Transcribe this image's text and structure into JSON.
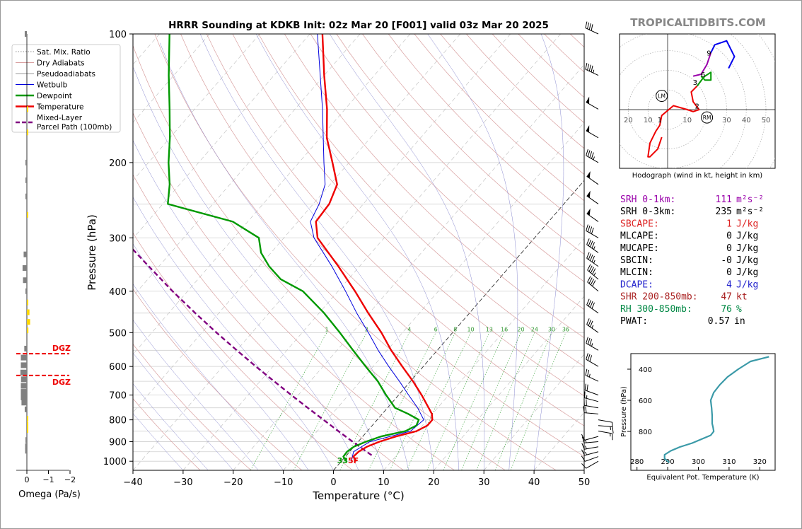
{
  "title": "HRRR Sounding at KDKB Init: 02z Mar 20 [F001] valid 03z Mar 20 2025",
  "brand": "TROPICALTIDBITS.COM",
  "colors": {
    "temperature": "#ee0000",
    "dewpoint": "#009900",
    "wetbulb": "#0000dd",
    "parcel": "#800080",
    "dry_adiabat": "#d9a0a0",
    "moist_adiabat": "#9a9a9a",
    "mixing_ratio": "#2e9e2e",
    "isotherm": "#2222cc",
    "theta_e": "#3b9aa8",
    "dgz": "#ee0000"
  },
  "legend": [
    {
      "key": "mixing_ratio",
      "label": "Sat. Mix. Ratio"
    },
    {
      "key": "dry_adiabat",
      "label": "Dry Adiabats"
    },
    {
      "key": "pseudo",
      "label": "Pseudoadiabats"
    },
    {
      "key": "wetbulb",
      "label": "Wetbulb"
    },
    {
      "key": "dewpoint",
      "label": "Dewpoint"
    },
    {
      "key": "temperature",
      "label": "Temperature"
    },
    {
      "key": "parcel",
      "label": "Mixed-Layer\nParcel Path (100mb)"
    }
  ],
  "omega": {
    "xlabel": "Omega (Pa/s)",
    "ticks": [
      "0",
      "−1",
      "−2"
    ],
    "dgz_label": "DGZ",
    "dgz_top_hpa": 560,
    "dgz_bottom_hpa": 630,
    "bars": [
      {
        "p": 100,
        "v": 0.1
      },
      {
        "p": 150,
        "v": -0.05
      },
      {
        "p": 170,
        "v": -0.03
      },
      {
        "p": 200,
        "v": 0.05
      },
      {
        "p": 220,
        "v": 0.05
      },
      {
        "p": 240,
        "v": 0.05
      },
      {
        "p": 265,
        "v": -0.03
      },
      {
        "p": 328,
        "v": 0.15
      },
      {
        "p": 353,
        "v": 0.2
      },
      {
        "p": 377,
        "v": 0.18
      },
      {
        "p": 400,
        "v": 0.05
      },
      {
        "p": 425,
        "v": -0.05
      },
      {
        "p": 448,
        "v": -0.12
      },
      {
        "p": 472,
        "v": -0.15
      },
      {
        "p": 494,
        "v": -0.07
      },
      {
        "p": 545,
        "v": 0.12
      },
      {
        "p": 572,
        "v": 0.28
      },
      {
        "p": 596,
        "v": 0.28
      },
      {
        "p": 620,
        "v": 0.3
      },
      {
        "p": 643,
        "v": 0.27
      },
      {
        "p": 666,
        "v": 0.28
      },
      {
        "p": 688,
        "v": 0.28
      },
      {
        "p": 709,
        "v": 0.28
      },
      {
        "p": 729,
        "v": 0.25
      },
      {
        "p": 756,
        "v": 0.1
      },
      {
        "p": 795,
        "v": -0.02
      },
      {
        "p": 822,
        "v": -0.05
      },
      {
        "p": 845,
        "v": -0.05
      },
      {
        "p": 892,
        "v": 0.05
      },
      {
        "p": 922,
        "v": 0.08
      },
      {
        "p": 945,
        "v": 0.08
      }
    ]
  },
  "chart_data": [
    {
      "type": "line",
      "title": "HRRR Sounding at KDKB Init: 02z Mar 20 [F001] valid 03z Mar 20 2025",
      "xlabel": "Temperature (°C)",
      "ylabel": "Pressure (hPa)",
      "xlim": [
        -40,
        50
      ],
      "ylim": [
        1050,
        100
      ],
      "yscale": "log",
      "skew": true,
      "x_ticks": [
        "−40",
        "−30",
        "−20",
        "−10",
        "0",
        "10",
        "20",
        "30",
        "40",
        "50"
      ],
      "y_ticks": [
        100,
        200,
        300,
        400,
        500,
        600,
        700,
        800,
        900,
        1000
      ],
      "mixing_ratio_labels": [
        "1",
        "2",
        "4",
        "6",
        "8",
        "10",
        "13",
        "16",
        "20",
        "24",
        "30",
        "36"
      ],
      "surface_temp_label": "33",
      "surface_temp_unit": "5F",
      "series": [
        {
          "name": "Temperature",
          "points": [
            [
              1000,
              3.0
            ],
            [
              975,
              1.6
            ],
            [
              950,
              1.8
            ],
            [
              925,
              2.6
            ],
            [
              900,
              4.2
            ],
            [
              875,
              6.6
            ],
            [
              850,
              9.8
            ],
            [
              825,
              11.0
            ],
            [
              800,
              11.0
            ],
            [
              775,
              9.9
            ],
            [
              750,
              8.2
            ],
            [
              700,
              4.6
            ],
            [
              650,
              0.5
            ],
            [
              600,
              -4.2
            ],
            [
              550,
              -9.2
            ],
            [
              500,
              -14.2
            ],
            [
              450,
              -20.2
            ],
            [
              400,
              -26.6
            ],
            [
              350,
              -34.2
            ],
            [
              300,
              -43.3
            ],
            [
              275,
              -46.4
            ],
            [
              250,
              -46.8
            ],
            [
              225,
              -48.6
            ],
            [
              200,
              -53.3
            ],
            [
              175,
              -58.7
            ],
            [
              150,
              -63.6
            ],
            [
              125,
              -70.0
            ],
            [
              100,
              -77.5
            ]
          ]
        },
        {
          "name": "Dewpoint",
          "points": [
            [
              1000,
              1.0
            ],
            [
              975,
              -0.4
            ],
            [
              950,
              -0.5
            ],
            [
              925,
              0.0
            ],
            [
              900,
              1.5
            ],
            [
              875,
              3.6
            ],
            [
              850,
              7.6
            ],
            [
              825,
              8.8
            ],
            [
              800,
              8.3
            ],
            [
              775,
              5.2
            ],
            [
              750,
              1.5
            ],
            [
              700,
              -2.5
            ],
            [
              650,
              -6.5
            ],
            [
              600,
              -11.5
            ],
            [
              550,
              -16.8
            ],
            [
              500,
              -22.5
            ],
            [
              450,
              -29.0
            ],
            [
              400,
              -37.0
            ],
            [
              375,
              -43.5
            ],
            [
              350,
              -48.0
            ],
            [
              325,
              -52.0
            ],
            [
              300,
              -55.0
            ],
            [
              275,
              -63.0
            ],
            [
              250,
              -79.0
            ],
            [
              225,
              -82.0
            ],
            [
              200,
              -86.0
            ],
            [
              175,
              -90.0
            ],
            [
              150,
              -95.0
            ],
            [
              125,
              -101.0
            ],
            [
              100,
              -108.0
            ]
          ]
        },
        {
          "name": "Wetbulb",
          "points": [
            [
              1000,
              2.0
            ],
            [
              950,
              0.8
            ],
            [
              900,
              2.3
            ],
            [
              850,
              8.6
            ],
            [
              800,
              9.3
            ],
            [
              750,
              6.0
            ],
            [
              700,
              2.0
            ],
            [
              650,
              -2.2
            ],
            [
              600,
              -6.9
            ],
            [
              550,
              -11.8
            ],
            [
              500,
              -16.8
            ],
            [
              450,
              -22.5
            ],
            [
              400,
              -28.5
            ],
            [
              350,
              -35.5
            ],
            [
              300,
              -44.0
            ],
            [
              275,
              -47.5
            ],
            [
              250,
              -48.8
            ],
            [
              225,
              -51.0
            ],
            [
              200,
              -55.0
            ],
            [
              150,
              -64.5
            ],
            [
              100,
              -78.5
            ]
          ]
        },
        {
          "name": "Mixed-Layer Parcel Path (100mb)",
          "points": [
            [
              968,
              5.0
            ],
            [
              950,
              3.4
            ],
            [
              925,
              1.2
            ],
            [
              900,
              -1.1
            ],
            [
              850,
              -5.8
            ],
            [
              800,
              -10.7
            ],
            [
              750,
              -15.9
            ],
            [
              700,
              -21.4
            ],
            [
              650,
              -27.2
            ],
            [
              600,
              -33.4
            ],
            [
              550,
              -40.0
            ],
            [
              500,
              -47.1
            ],
            [
              450,
              -54.7
            ],
            [
              400,
              -63.0
            ],
            [
              350,
              -72.0
            ],
            [
              300,
              -82.3
            ],
            [
              250,
              -94.3
            ]
          ]
        }
      ]
    },
    {
      "type": "line",
      "title": "",
      "xlabel": "Hodograph (wind in kt, height in km)",
      "xlim": [
        -20,
        55
      ],
      "ylim": [
        -25,
        37
      ],
      "ring_labels": [
        "20",
        "10",
        "10",
        "20",
        "30",
        "40",
        "50"
      ],
      "height_labels": [
        {
          "label": "1",
          "x": -4,
          "y": -5
        },
        {
          "label": "2",
          "x": 15,
          "y": 2
        },
        {
          "label": "3",
          "x": 14,
          "y": 14
        },
        {
          "label": "6",
          "x": 18,
          "y": 18
        },
        {
          "label": "9",
          "x": 21,
          "y": 29
        }
      ],
      "storm_motion": [
        {
          "label": "LM",
          "x": -3,
          "y": 7
        },
        {
          "label": "RM",
          "x": 20,
          "y": -4
        }
      ],
      "series": [
        {
          "name": "0-3 km",
          "color": "#ee0000",
          "points": [
            [
              -3,
              -14
            ],
            [
              -5,
              -20
            ],
            [
              -9,
              -24
            ],
            [
              -10,
              -24
            ],
            [
              -9,
              -17
            ],
            [
              -6,
              -11
            ],
            [
              -4,
              -8
            ],
            [
              -3,
              -3
            ],
            [
              3,
              2
            ],
            [
              10,
              0
            ],
            [
              13,
              -1
            ],
            [
              16,
              0
            ],
            [
              13,
              4
            ],
            [
              12,
              9
            ],
            [
              14,
              11
            ],
            [
              15,
              12
            ]
          ]
        },
        {
          "name": "3-6 km",
          "color": "#009900",
          "points": [
            [
              15,
              12
            ],
            [
              18,
              16
            ],
            [
              19,
              17
            ],
            [
              22,
              19
            ],
            [
              22,
              15
            ],
            [
              19,
              15
            ],
            [
              17,
              17
            ]
          ]
        },
        {
          "name": "6-9 km",
          "color": "#9900aa",
          "points": [
            [
              13,
              17
            ],
            [
              17,
              18
            ],
            [
              20,
              23
            ],
            [
              22,
              29
            ]
          ]
        },
        {
          "name": "9-12 km",
          "color": "#0000ee",
          "points": [
            [
              22,
              29
            ],
            [
              24,
              33
            ],
            [
              30,
              35
            ],
            [
              34,
              27
            ],
            [
              31,
              21
            ]
          ]
        }
      ]
    },
    {
      "type": "line",
      "title": "",
      "xlabel": "Equivalent Pot. Temperature (K)",
      "ylabel": "Pressure (hPa)",
      "xlim": [
        278,
        325
      ],
      "ylim": [
        1050,
        300
      ],
      "x_ticks": [
        "280",
        "290",
        "300",
        "310",
        "320"
      ],
      "y_ticks": [
        "400",
        "600",
        "800"
      ],
      "series": [
        {
          "name": "Equivalent Pot. Temperature",
          "points": [
            [
              1000,
              290.5
            ],
            [
              975,
              289.0
            ],
            [
              950,
              289.0
            ],
            [
              925,
              291.0
            ],
            [
              900,
              294.0
            ],
            [
              875,
              298.0
            ],
            [
              850,
              301.0
            ],
            [
              825,
              304.0
            ],
            [
              800,
              305.0
            ],
            [
              775,
              304.8
            ],
            [
              750,
              304.5
            ],
            [
              700,
              304.5
            ],
            [
              650,
              304.3
            ],
            [
              600,
              304.0
            ],
            [
              550,
              305.0
            ],
            [
              500,
              307.0
            ],
            [
              450,
              309.5
            ],
            [
              400,
              313.0
            ],
            [
              350,
              317.0
            ],
            [
              320,
              323.0
            ]
          ]
        }
      ]
    }
  ],
  "barbs": [
    {
      "p": 1000,
      "dir": 240,
      "spd": 10
    },
    {
      "p": 975,
      "dir": 250,
      "spd": 10
    },
    {
      "p": 950,
      "dir": 255,
      "spd": 15
    },
    {
      "p": 925,
      "dir": 260,
      "spd": 15
    },
    {
      "p": 900,
      "dir": 265,
      "spd": 15
    },
    {
      "p": 875,
      "dir": 255,
      "spd": 10
    },
    {
      "p": 850,
      "dir": 100,
      "spd": 15
    },
    {
      "p": 825,
      "dir": 95,
      "spd": 15
    },
    {
      "p": 800,
      "dir": 100,
      "spd": 10
    },
    {
      "p": 775,
      "dir": 275,
      "spd": 20
    },
    {
      "p": 750,
      "dir": 280,
      "spd": 20
    },
    {
      "p": 725,
      "dir": 285,
      "spd": 15
    },
    {
      "p": 700,
      "dir": 290,
      "spd": 20
    },
    {
      "p": 650,
      "dir": 295,
      "spd": 25
    },
    {
      "p": 600,
      "dir": 300,
      "spd": 30
    },
    {
      "p": 550,
      "dir": 300,
      "spd": 35
    },
    {
      "p": 500,
      "dir": 305,
      "spd": 35
    },
    {
      "p": 450,
      "dir": 305,
      "spd": 40
    },
    {
      "p": 400,
      "dir": 310,
      "spd": 40
    },
    {
      "p": 375,
      "dir": 310,
      "spd": 45
    },
    {
      "p": 350,
      "dir": 305,
      "spd": 45
    },
    {
      "p": 325,
      "dir": 305,
      "spd": 45
    },
    {
      "p": 300,
      "dir": 300,
      "spd": 40
    },
    {
      "p": 275,
      "dir": 305,
      "spd": 50
    },
    {
      "p": 250,
      "dir": 305,
      "spd": 50
    },
    {
      "p": 225,
      "dir": 305,
      "spd": 50
    },
    {
      "p": 200,
      "dir": 300,
      "spd": 45
    },
    {
      "p": 175,
      "dir": 300,
      "spd": 50
    },
    {
      "p": 150,
      "dir": 300,
      "spd": 50
    },
    {
      "p": 125,
      "dir": 295,
      "spd": 45
    },
    {
      "p": 100,
      "dir": 295,
      "spd": 40
    }
  ],
  "indices": [
    {
      "label": "SRH 0-1km:",
      "value": "111",
      "unit_html": "m²s⁻²",
      "color": "#9900aa"
    },
    {
      "label": "SRH 0-3km:",
      "value": "235",
      "unit_html": "m²s⁻²",
      "color": "#000000"
    },
    {
      "label": "SBCAPE:",
      "value": "1",
      "unit_html": "J/kg",
      "color": "#dd2222"
    },
    {
      "label": "MLCAPE:",
      "value": "0",
      "unit_html": "J/kg",
      "color": "#000000"
    },
    {
      "label": "MUCAPE:",
      "value": "0",
      "unit_html": "J/kg",
      "color": "#000000"
    },
    {
      "label": "SBCIN:",
      "value": "-0",
      "unit_html": "J/kg",
      "color": "#000000"
    },
    {
      "label": "MLCIN:",
      "value": "0",
      "unit_html": "J/kg",
      "color": "#000000"
    },
    {
      "label": "DCAPE:",
      "value": "4",
      "unit_html": "J/kg",
      "color": "#2222cc"
    },
    {
      "label": "SHR 200-850mb:",
      "value": "47",
      "unit_html": "kt",
      "color": "#aa2222"
    },
    {
      "label": "RH 300-850mb:",
      "value": "76",
      "unit_html": "%",
      "color": "#008844"
    },
    {
      "label": "PWAT:",
      "value": "0.57",
      "unit_html": "in",
      "color": "#000000"
    }
  ]
}
